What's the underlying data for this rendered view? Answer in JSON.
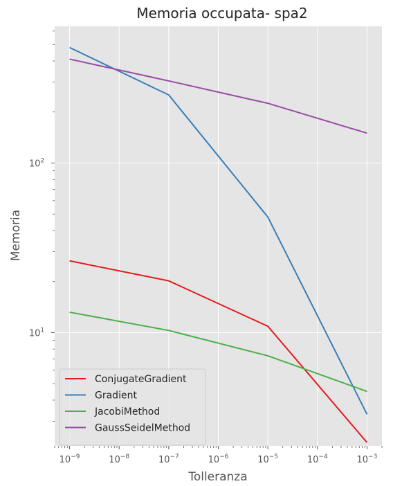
{
  "chart_data": {
    "type": "line",
    "title": "Memoria occupata- spa2",
    "xlabel": "Tolleranza",
    "ylabel": "Memoria",
    "xscale": "log",
    "yscale": "log",
    "x": [
      1e-09,
      1e-07,
      1e-05,
      0.001
    ],
    "x_tick_labels": [
      {
        "base": "10",
        "exp": "−9"
      },
      {
        "base": "10",
        "exp": "−8"
      },
      {
        "base": "10",
        "exp": "−7"
      },
      {
        "base": "10",
        "exp": "−6"
      },
      {
        "base": "10",
        "exp": "−5"
      },
      {
        "base": "10",
        "exp": "−4"
      },
      {
        "base": "10",
        "exp": "−3"
      }
    ],
    "y_tick_labels": [
      {
        "base": "10",
        "exp": "1"
      },
      {
        "base": "10",
        "exp": "2"
      }
    ],
    "xlim": [
      5e-10,
      0.002
    ],
    "ylim": [
      2.15,
      640
    ],
    "grid": true,
    "legend_position": "lower-left",
    "series": [
      {
        "name": "ConjugateGradient",
        "color": "#e41a1c",
        "values": [
          26.5,
          20.2,
          10.9,
          2.25
        ]
      },
      {
        "name": "Gradient",
        "color": "#377eb8",
        "values": [
          480,
          252,
          48,
          3.3
        ]
      },
      {
        "name": "JacobiMethod",
        "color": "#4daf4a",
        "values": [
          13.2,
          10.3,
          7.3,
          4.5
        ]
      },
      {
        "name": "GaussSeidelMethod",
        "color": "#984ea3",
        "values": [
          410,
          305,
          225,
          150
        ]
      }
    ]
  }
}
